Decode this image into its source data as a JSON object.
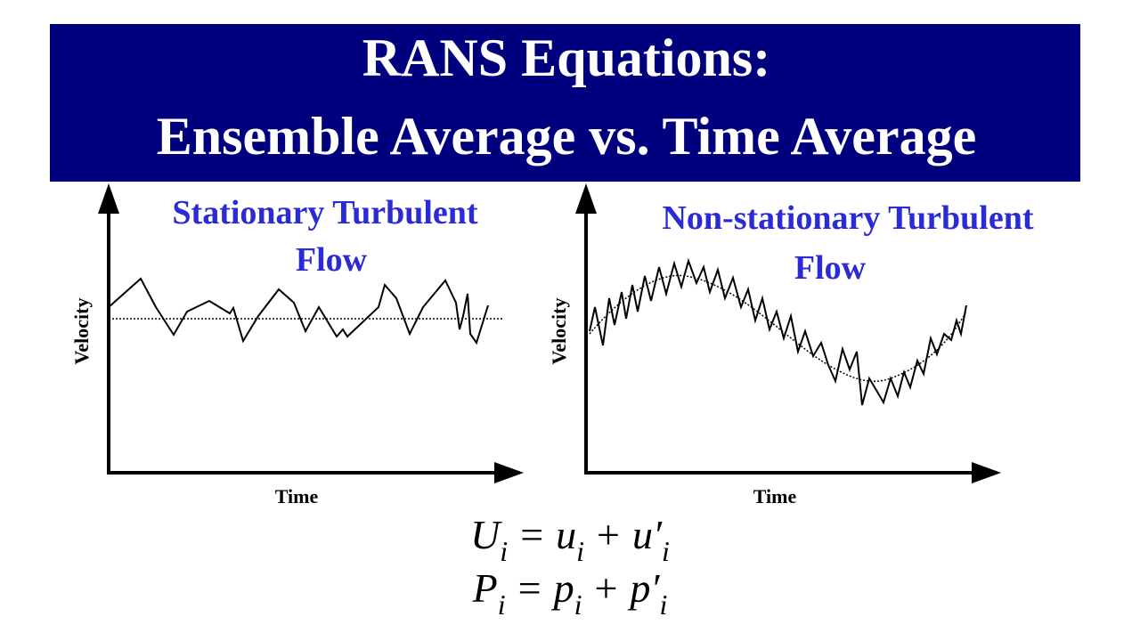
{
  "header": {
    "title_lines": [
      "RANS Equations:",
      "Ensemble Average vs. Time Average"
    ]
  },
  "panels": [
    {
      "title_lines": [
        "Stationary Turbulent",
        "Flow"
      ],
      "y_label": "Velocity",
      "x_label": "Time"
    },
    {
      "title_lines": [
        "Non-stationary Turbulent",
        "Flow"
      ],
      "y_label": "Velocity",
      "x_label": "Time"
    }
  ],
  "equations": [
    [
      {
        "base": "U",
        "sub": "i"
      },
      {
        "op": "="
      },
      {
        "base": "u",
        "sub": "i"
      },
      {
        "op": "+"
      },
      {
        "base": "u′",
        "sub": "i"
      }
    ],
    [
      {
        "base": "P",
        "sub": "i"
      },
      {
        "op": "="
      },
      {
        "base": "p",
        "sub": "i"
      },
      {
        "op": "+"
      },
      {
        "base": "p′",
        "sub": "i"
      }
    ]
  ]
}
